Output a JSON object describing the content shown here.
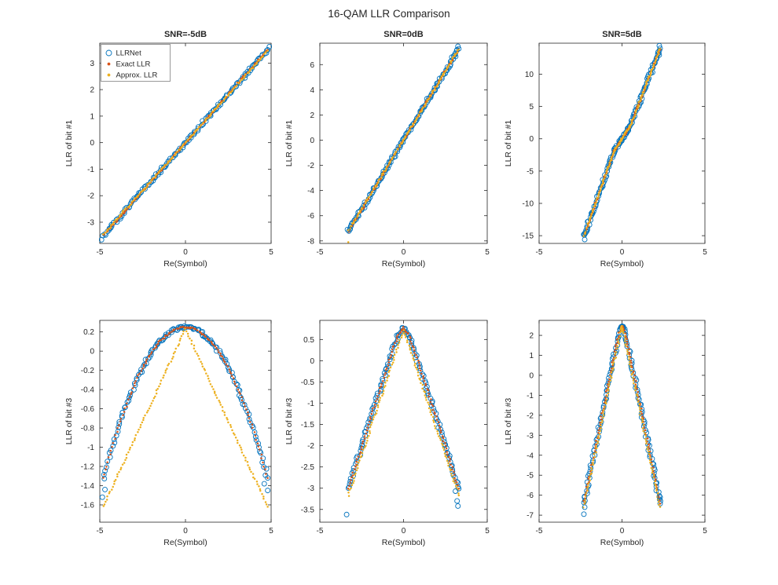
{
  "figure": {
    "title": "16-QAM LLR Comparison"
  },
  "legend": {
    "items": [
      {
        "label": "LLRNet",
        "marker": "circle",
        "color": "#0072BD"
      },
      {
        "label": "Exact LLR",
        "marker": "dot",
        "color": "#D95319"
      },
      {
        "label": "Approx. LLR",
        "marker": "dot",
        "color": "#EDB120"
      }
    ]
  },
  "chart_data": [
    {
      "type": "scatter",
      "title": "SNR=-5dB",
      "xlabel": "Re(Symbol)",
      "ylabel": "LLR of bit #1",
      "xlim": [
        -5,
        5
      ],
      "ylim": [
        -3.8,
        3.75
      ],
      "xticks": [
        -5,
        0,
        5
      ],
      "yticks": [
        3,
        2,
        1,
        0,
        -1,
        -2,
        -3
      ],
      "x": [
        -4.8,
        -4.4,
        -4,
        -3.6,
        -3.2,
        -2.8,
        -2.4,
        -2,
        -1.6,
        -1.2,
        -0.8,
        -0.4,
        0,
        0.4,
        0.8,
        1.2,
        1.6,
        2,
        2.4,
        2.8,
        3.2,
        3.6,
        4,
        4.4,
        4.8
      ],
      "series": [
        {
          "name": "LLRNet",
          "color": "#0072BD",
          "marker": "circle",
          "y": [
            -3.5,
            -3.21,
            -2.92,
            -2.63,
            -2.34,
            -2.04,
            -1.75,
            -1.46,
            -1.17,
            -0.88,
            -0.58,
            -0.29,
            0,
            0.29,
            0.58,
            0.88,
            1.17,
            1.46,
            1.75,
            2.04,
            2.34,
            2.63,
            2.92,
            3.21,
            3.5
          ]
        },
        {
          "name": "Exact LLR",
          "color": "#D95319",
          "marker": "dot",
          "y": [
            -3.5,
            -3.21,
            -2.92,
            -2.63,
            -2.34,
            -2.04,
            -1.75,
            -1.46,
            -1.17,
            -0.88,
            -0.58,
            -0.29,
            0,
            0.29,
            0.58,
            0.88,
            1.17,
            1.46,
            1.75,
            2.04,
            2.34,
            2.63,
            2.92,
            3.21,
            3.5
          ]
        },
        {
          "name": "Approx. LLR",
          "color": "#EDB120",
          "marker": "dot",
          "y": [
            -3.46,
            -3.17,
            -2.88,
            -2.59,
            -2.3,
            -2.02,
            -1.73,
            -1.44,
            -1.15,
            -0.86,
            -0.58,
            -0.29,
            0,
            0.29,
            0.58,
            0.86,
            1.15,
            1.44,
            1.73,
            2.02,
            2.3,
            2.59,
            2.88,
            3.17,
            3.46
          ]
        }
      ],
      "outliers": [
        {
          "x": 4.9,
          "y": 3.62,
          "s": 0
        },
        {
          "x": -4.9,
          "y": -3.66,
          "s": 0
        }
      ]
    },
    {
      "type": "scatter",
      "title": "SNR=0dB",
      "xlabel": "Re(Symbol)",
      "ylabel": "LLR of bit #1",
      "xlim": [
        -5,
        5
      ],
      "ylim": [
        -8.2,
        7.7
      ],
      "xticks": [
        -5,
        0,
        5
      ],
      "yticks": [
        6,
        4,
        2,
        0,
        -2,
        -4,
        -6,
        -8
      ],
      "x": [
        -3.3,
        -3,
        -2.7,
        -2.4,
        -2.1,
        -1.8,
        -1.5,
        -1.2,
        -0.9,
        -0.6,
        -0.3,
        0,
        0.3,
        0.6,
        0.9,
        1.2,
        1.5,
        1.8,
        2.1,
        2.4,
        2.7,
        3,
        3.3
      ],
      "series": [
        {
          "name": "LLRNet",
          "color": "#0072BD",
          "marker": "circle",
          "y": [
            -7.26,
            -6.6,
            -5.94,
            -5.28,
            -4.62,
            -3.96,
            -3.3,
            -2.64,
            -1.98,
            -1.32,
            -0.66,
            0,
            0.66,
            1.32,
            1.98,
            2.64,
            3.3,
            3.96,
            4.62,
            5.28,
            5.94,
            6.6,
            7.26
          ]
        },
        {
          "name": "Exact LLR",
          "color": "#D95319",
          "marker": "dot",
          "y": [
            -7.26,
            -6.6,
            -5.94,
            -5.28,
            -4.62,
            -3.96,
            -3.3,
            -2.64,
            -1.98,
            -1.32,
            -0.66,
            0,
            0.66,
            1.32,
            1.98,
            2.64,
            3.3,
            3.96,
            4.62,
            5.28,
            5.94,
            6.6,
            7.26
          ]
        },
        {
          "name": "Approx. LLR",
          "color": "#EDB120",
          "marker": "dot",
          "y": [
            -7.2,
            -6.55,
            -5.9,
            -5.24,
            -4.58,
            -3.93,
            -3.27,
            -2.62,
            -1.96,
            -1.31,
            -0.65,
            0,
            0.65,
            1.31,
            1.96,
            2.62,
            3.27,
            3.93,
            4.58,
            5.24,
            5.9,
            6.55,
            7.2
          ]
        }
      ],
      "outliers": [
        {
          "x": -3.35,
          "y": -7.1,
          "s": 0
        },
        {
          "x": 3.25,
          "y": 7.45,
          "s": 0
        },
        {
          "x": -3.3,
          "y": -8.1,
          "s": 2
        }
      ]
    },
    {
      "type": "scatter",
      "title": "SNR=5dB",
      "xlabel": "Re(Symbol)",
      "ylabel": "LLR of bit #1",
      "xlim": [
        -5,
        5
      ],
      "ylim": [
        -16.2,
        14.8
      ],
      "xticks": [
        -5,
        0,
        5
      ],
      "yticks": [
        10,
        5,
        0,
        -5,
        -10,
        -15
      ],
      "x": [
        -2.3,
        -2.1,
        -1.9,
        -1.7,
        -1.5,
        -1.3,
        -1.1,
        -0.9,
        -0.7,
        -0.5,
        -0.3,
        -0.1,
        0,
        0.1,
        0.3,
        0.5,
        0.7,
        0.9,
        1.1,
        1.3,
        1.5,
        1.7,
        1.9,
        2.1,
        2.3
      ],
      "series": [
        {
          "name": "LLRNet",
          "color": "#0072BD",
          "marker": "circle",
          "y": [
            -15.1,
            -13.7,
            -12.2,
            -10.8,
            -9.3,
            -7.8,
            -6.4,
            -4.9,
            -3.5,
            -2,
            -1.2,
            -0.4,
            0,
            0.4,
            1.2,
            2,
            3.3,
            4.7,
            6,
            7.3,
            8.7,
            10,
            11.3,
            12.7,
            14
          ]
        },
        {
          "name": "Exact LLR",
          "color": "#D95319",
          "marker": "dot",
          "y": [
            -15.1,
            -13.7,
            -12.2,
            -10.8,
            -9.3,
            -7.8,
            -6.4,
            -4.9,
            -3.5,
            -2,
            -1.2,
            -0.4,
            0,
            0.4,
            1.2,
            2,
            3.3,
            4.7,
            6,
            7.3,
            8.7,
            10,
            11.3,
            12.7,
            14
          ]
        },
        {
          "name": "Approx. LLR",
          "color": "#EDB120",
          "marker": "dot",
          "y": [
            -15.1,
            -13.7,
            -12.2,
            -10.8,
            -9.3,
            -7.8,
            -6.4,
            -4.9,
            -3.5,
            -2,
            -1.2,
            -0.4,
            0,
            0.4,
            1.2,
            2,
            3.3,
            4.7,
            6,
            7.3,
            8.7,
            10,
            11.3,
            12.7,
            14
          ]
        }
      ],
      "outliers": [
        {
          "x": -2.25,
          "y": -15.6,
          "s": 0
        },
        {
          "x": -2.2,
          "y": -14.6,
          "s": 0
        },
        {
          "x": 2.25,
          "y": 14.4,
          "s": 0
        }
      ]
    },
    {
      "type": "scatter",
      "title": "",
      "xlabel": "Re(Symbol)",
      "ylabel": "LLR of bit #3",
      "xlim": [
        -5,
        5
      ],
      "ylim": [
        -1.78,
        0.32
      ],
      "xticks": [
        -5,
        0,
        5
      ],
      "yticks": [
        0.2,
        0,
        -0.2,
        -0.4,
        -0.6,
        -0.8,
        -1,
        -1.2,
        -1.4,
        -1.6
      ],
      "x": [
        -4.8,
        -4.4,
        -4,
        -3.6,
        -3.2,
        -2.8,
        -2.4,
        -2,
        -1.6,
        -1.2,
        -0.8,
        -0.4,
        0,
        0.4,
        0.8,
        1.2,
        1.6,
        2,
        2.4,
        2.8,
        3.2,
        3.6,
        4,
        4.4,
        4.8
      ],
      "series": [
        {
          "name": "LLRNet",
          "color": "#0072BD",
          "marker": "circle",
          "y": [
            -1.32,
            -1.07,
            -0.84,
            -0.63,
            -0.45,
            -0.28,
            -0.14,
            -0.02,
            0.08,
            0.15,
            0.21,
            0.24,
            0.25,
            0.24,
            0.21,
            0.15,
            0.08,
            -0.02,
            -0.14,
            -0.28,
            -0.45,
            -0.63,
            -0.84,
            -1.07,
            -1.32
          ]
        },
        {
          "name": "Exact LLR",
          "color": "#D95319",
          "marker": "dot",
          "y": [
            -1.32,
            -1.07,
            -0.84,
            -0.63,
            -0.45,
            -0.28,
            -0.14,
            -0.02,
            0.08,
            0.15,
            0.21,
            0.24,
            0.25,
            0.24,
            0.21,
            0.15,
            0.08,
            -0.02,
            -0.14,
            -0.28,
            -0.45,
            -0.63,
            -0.84,
            -1.07,
            -1.32
          ]
        },
        {
          "name": "Approx. LLR",
          "color": "#EDB120",
          "marker": "dot",
          "y": [
            -1.62,
            -1.46,
            -1.31,
            -1.16,
            -1.0,
            -0.85,
            -0.69,
            -0.54,
            -0.39,
            -0.23,
            -0.08,
            0.08,
            0.23,
            0.08,
            -0.08,
            -0.23,
            -0.39,
            -0.54,
            -0.69,
            -0.85,
            -1.0,
            -1.16,
            -1.31,
            -1.46,
            -1.62
          ]
        }
      ],
      "outliers": [
        {
          "x": -4.85,
          "y": -1.52,
          "s": 0
        },
        {
          "x": 4.8,
          "y": -1.45,
          "s": 0
        },
        {
          "x": 4.6,
          "y": -1.38,
          "s": 0
        },
        {
          "x": -4.7,
          "y": -1.44,
          "s": 0
        }
      ]
    },
    {
      "type": "scatter",
      "title": "",
      "xlabel": "Re(Symbol)",
      "ylabel": "LLR of bit #3",
      "xlim": [
        -5,
        5
      ],
      "ylim": [
        -3.8,
        0.95
      ],
      "xticks": [
        -5,
        0,
        5
      ],
      "yticks": [
        0.5,
        0,
        -0.5,
        -1,
        -1.5,
        -2,
        -2.5,
        -3,
        -3.5
      ],
      "x": [
        -3.3,
        -3,
        -2.7,
        -2.4,
        -2.1,
        -1.8,
        -1.5,
        -1.2,
        -0.9,
        -0.6,
        -0.3,
        0,
        0.3,
        0.6,
        0.9,
        1.2,
        1.5,
        1.8,
        2.1,
        2.4,
        2.7,
        3,
        3.3
      ],
      "series": [
        {
          "name": "LLRNet",
          "color": "#0072BD",
          "marker": "circle",
          "y": [
            -3.01,
            -2.63,
            -2.26,
            -1.89,
            -1.51,
            -1.14,
            -0.77,
            -0.41,
            -0.05,
            0.31,
            0.62,
            0.78,
            0.62,
            0.31,
            -0.05,
            -0.41,
            -0.77,
            -1.14,
            -1.51,
            -1.89,
            -2.26,
            -2.63,
            -3.01
          ]
        },
        {
          "name": "Exact LLR",
          "color": "#D95319",
          "marker": "dot",
          "y": [
            -3.01,
            -2.63,
            -2.26,
            -1.89,
            -1.51,
            -1.14,
            -0.77,
            -0.41,
            -0.05,
            0.31,
            0.62,
            0.78,
            0.62,
            0.31,
            -0.05,
            -0.41,
            -0.77,
            -1.14,
            -1.51,
            -1.89,
            -2.26,
            -2.63,
            -3.01
          ]
        },
        {
          "name": "Approx. LLR",
          "color": "#EDB120",
          "marker": "dot",
          "y": [
            -3.17,
            -2.82,
            -2.47,
            -2.11,
            -1.76,
            -1.4,
            -1.05,
            -0.7,
            -0.34,
            0.01,
            0.37,
            0.72,
            0.37,
            0.01,
            -0.34,
            -0.7,
            -1.05,
            -1.4,
            -1.76,
            -2.11,
            -2.47,
            -2.82,
            -3.17
          ]
        }
      ],
      "outliers": [
        {
          "x": -3.4,
          "y": -3.62,
          "s": 0
        },
        {
          "x": 3.1,
          "y": -3.07,
          "s": 0
        },
        {
          "x": 3.2,
          "y": -3.3,
          "s": 0
        },
        {
          "x": 3.25,
          "y": -3.42,
          "s": 0
        }
      ]
    },
    {
      "type": "scatter",
      "title": "",
      "xlabel": "Re(Symbol)",
      "ylabel": "LLR of bit #3",
      "xlim": [
        -5,
        5
      ],
      "ylim": [
        -7.35,
        2.75
      ],
      "xticks": [
        -5,
        0,
        5
      ],
      "yticks": [
        2,
        1,
        0,
        -1,
        -2,
        -3,
        -4,
        -5,
        -6,
        -7
      ],
      "x": [
        -2.3,
        -2.1,
        -1.9,
        -1.7,
        -1.5,
        -1.3,
        -1.1,
        -0.9,
        -0.7,
        -0.5,
        -0.3,
        -0.1,
        0,
        0.1,
        0.3,
        0.5,
        0.7,
        0.9,
        1.1,
        1.3,
        1.5,
        1.7,
        1.9,
        2.1,
        2.3
      ],
      "series": [
        {
          "name": "LLRNet",
          "color": "#0072BD",
          "marker": "circle",
          "y": [
            -6.42,
            -5.6,
            -4.78,
            -3.96,
            -3.15,
            -2.33,
            -1.52,
            -0.7,
            0.1,
            0.9,
            1.67,
            2.32,
            2.45,
            2.32,
            1.67,
            0.9,
            0.1,
            -0.7,
            -1.52,
            -2.33,
            -3.15,
            -3.96,
            -4.78,
            -5.6,
            -6.42
          ]
        },
        {
          "name": "Exact LLR",
          "color": "#D95319",
          "marker": "dot",
          "y": [
            -6.42,
            -5.6,
            -4.78,
            -3.96,
            -3.15,
            -2.33,
            -1.52,
            -0.7,
            0.1,
            0.9,
            1.67,
            2.32,
            2.45,
            2.32,
            1.67,
            0.9,
            0.1,
            -0.7,
            -1.52,
            -2.33,
            -3.15,
            -3.96,
            -4.78,
            -5.6,
            -6.42
          ]
        },
        {
          "name": "Approx. LLR",
          "color": "#EDB120",
          "marker": "dot",
          "y": [
            -6.59,
            -5.8,
            -5.01,
            -4.22,
            -3.43,
            -2.64,
            -1.85,
            -1.06,
            -0.27,
            0.53,
            1.32,
            2.11,
            2.5,
            2.11,
            1.32,
            0.53,
            -0.27,
            -1.06,
            -1.85,
            -2.64,
            -3.43,
            -4.22,
            -5.01,
            -5.8,
            -6.59
          ]
        }
      ],
      "outliers": [
        {
          "x": -2.3,
          "y": -6.95,
          "s": 0
        },
        {
          "x": -2.25,
          "y": -6.6,
          "s": 0
        },
        {
          "x": 2.3,
          "y": -6.1,
          "s": 0
        }
      ]
    }
  ]
}
